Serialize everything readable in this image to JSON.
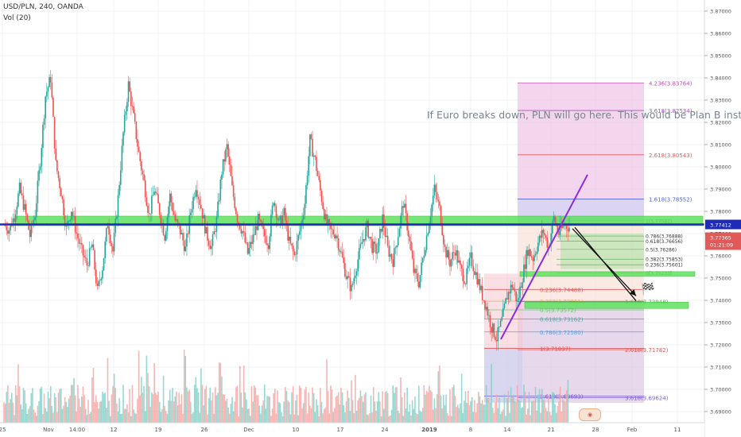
{
  "header": {
    "title": "USD/PLN, 240, OANDA",
    "volume": "Vol (20)"
  },
  "annotation": "If Euro breaks down, PLN will go here. This would be Plan B instead",
  "price_tags": {
    "last": "3.77412",
    "current": "3.77365",
    "countdown": "01:21:09"
  },
  "colors": {
    "up": "#26a69a",
    "down": "#ef5350",
    "resistance": "#1e2bb8",
    "trend": "#8a2be2",
    "zone": "#5fe35f",
    "fib": "#e07a86",
    "fib_ext": "#7b5fd6",
    "grid": "#eef0f3"
  },
  "chart_data": {
    "type": "candlestick",
    "symbol": "USD/PLN",
    "timeframe": "240",
    "source": "OANDA",
    "ylim": [
      3.685,
      3.875
    ],
    "y_ticks": [
      "3.87000",
      "3.86000",
      "3.85000",
      "3.84000",
      "3.83000",
      "3.82000",
      "3.81000",
      "3.80000",
      "3.79000",
      "3.78000",
      "3.77000",
      "3.76000",
      "3.75000",
      "3.74000",
      "3.73000",
      "3.72000",
      "3.71000",
      "3.70000",
      "3.69000"
    ],
    "x_ticks": [
      "25",
      "Nov",
      "14:00",
      "12",
      "19",
      "26",
      "Dec",
      "10",
      "17",
      "24",
      "2019",
      "8",
      "14",
      "21",
      "28",
      "Feb",
      "11"
    ],
    "close_path": [
      3.774,
      3.772,
      3.778,
      3.79,
      3.781,
      3.769,
      3.779,
      3.803,
      3.832,
      3.84,
      3.801,
      3.789,
      3.772,
      3.781,
      3.77,
      3.762,
      3.756,
      3.765,
      3.744,
      3.755,
      3.775,
      3.762,
      3.786,
      3.815,
      3.837,
      3.822,
      3.806,
      3.793,
      3.778,
      3.79,
      3.78,
      3.769,
      3.787,
      3.776,
      3.771,
      3.763,
      3.78,
      3.792,
      3.782,
      3.77,
      3.764,
      3.776,
      3.798,
      3.809,
      3.79,
      3.777,
      3.771,
      3.761,
      3.768,
      3.776,
      3.77,
      3.766,
      3.786,
      3.774,
      3.779,
      3.766,
      3.76,
      3.771,
      3.784,
      3.812,
      3.803,
      3.789,
      3.776,
      3.771,
      3.77,
      3.761,
      3.751,
      3.745,
      3.756,
      3.766,
      3.773,
      3.764,
      3.762,
      3.777,
      3.763,
      3.758,
      3.77,
      3.784,
      3.77,
      3.753,
      3.748,
      3.762,
      3.776,
      3.79,
      3.781,
      3.763,
      3.757,
      3.763,
      3.754,
      3.749,
      3.759,
      3.752,
      3.744,
      3.737,
      3.728,
      3.723,
      3.731,
      3.742,
      3.747,
      3.739,
      3.751,
      3.763,
      3.759,
      3.766,
      3.771,
      3.764,
      3.777,
      3.77,
      3.774,
      3.773
    ],
    "levels": [
      {
        "name": "resistance",
        "value": 3.774
      },
      {
        "name": "zone",
        "low": 3.7725,
        "high": 3.775
      }
    ],
    "fib_retracement": [
      {
        "label": "0.236(3.74488)",
        "value": 3.74488
      },
      {
        "label": "0.382(3.73961)",
        "value": 3.73961
      },
      {
        "label": "0.5(3.73572)",
        "value": 3.73572
      },
      {
        "label": "0.618(3.73162)",
        "value": 3.73162
      },
      {
        "label": "0.786(3.72580)",
        "value": 3.7258
      },
      {
        "label": "1(3.71837)",
        "value": 3.71837
      },
      {
        "label": "1.618(3.69693)",
        "value": 3.69693
      }
    ],
    "fib_extension": [
      {
        "label": "4.236(3.83764)",
        "value": 3.83764
      },
      {
        "label": "3.618(3.82534)",
        "value": 3.82534
      },
      {
        "label": "2.618(3.80543)",
        "value": 3.80543
      },
      {
        "label": "1.618(3.78552)",
        "value": 3.78552
      },
      {
        "label": "1.618(3.73948)",
        "value": 3.73948
      },
      {
        "label": "2.618(3.71782)",
        "value": 3.71782
      },
      {
        "label": "3.618(3.69624)",
        "value": 3.69624
      }
    ],
    "small_fib_labels": [
      "1(3.77582)",
      "0.786(3.76888)",
      "0.618(3.76656)",
      "0.5(3.76286)",
      "0.382(3.75853)",
      "0.236(3.75601)",
      "0(3.75233)"
    ]
  }
}
